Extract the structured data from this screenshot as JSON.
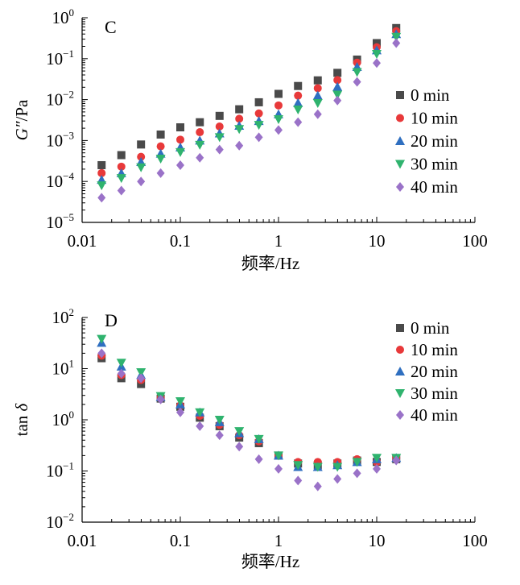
{
  "colors": {
    "0 min": "#4a4a4a",
    "10 min": "#e8393a",
    "20 min": "#2f6fc0",
    "30 min": "#2fb36e",
    "40 min": "#9a72c8"
  },
  "chart_data": [
    {
      "type": "scatter",
      "panel_label": "C",
      "xlabel": "频率/Hz",
      "ylabel_italic": "G″",
      "ylabel_rest": "/Pa",
      "xscale": "log",
      "yscale": "log",
      "xlim": [
        0.01,
        100
      ],
      "ylim": [
        1e-05,
        1
      ],
      "x_ticks": [
        "0.01",
        "0.1",
        "1",
        "10",
        "100"
      ],
      "y_ticks": [
        {
          "base": "10",
          "exp": "0"
        },
        {
          "base": "10",
          "exp": "−1"
        },
        {
          "base": "10",
          "exp": "−2"
        },
        {
          "base": "10",
          "exp": "−3"
        },
        {
          "base": "10",
          "exp": "−4"
        },
        {
          "base": "10",
          "exp": "−5"
        }
      ],
      "legend_position": "right",
      "x": [
        0.0158,
        0.0251,
        0.0398,
        0.0631,
        0.1,
        0.158,
        0.251,
        0.398,
        0.631,
        1.0,
        1.58,
        2.51,
        3.98,
        6.31,
        10.0,
        15.8
      ],
      "series": [
        {
          "name": "0 min",
          "marker": "square",
          "values": [
            0.00025,
            0.00044,
            0.0008,
            0.0014,
            0.0021,
            0.0028,
            0.004,
            0.0058,
            0.0086,
            0.0138,
            0.0215,
            0.0295,
            0.045,
            0.095,
            0.24,
            0.56
          ]
        },
        {
          "name": "10 min",
          "marker": "circle",
          "values": [
            0.00016,
            0.00023,
            0.0004,
            0.00072,
            0.00105,
            0.0016,
            0.0022,
            0.0034,
            0.0046,
            0.0072,
            0.0125,
            0.019,
            0.03,
            0.08,
            0.19,
            0.47
          ]
        },
        {
          "name": "20 min",
          "marker": "triangle-up",
          "values": [
            0.00011,
            0.00016,
            0.0003,
            0.00048,
            0.00068,
            0.001,
            0.0015,
            0.0023,
            0.003,
            0.0044,
            0.0083,
            0.0125,
            0.0205,
            0.063,
            0.16,
            0.4
          ]
        },
        {
          "name": "30 min",
          "marker": "triangle-down",
          "values": [
            8e-05,
            0.00012,
            0.00022,
            0.00036,
            0.00052,
            0.00078,
            0.0012,
            0.0019,
            0.0024,
            0.0033,
            0.0057,
            0.0082,
            0.0132,
            0.047,
            0.13,
            0.34
          ]
        },
        {
          "name": "40 min",
          "marker": "diamond",
          "values": [
            4e-05,
            6e-05,
            0.0001,
            0.00016,
            0.00025,
            0.00038,
            0.0006,
            0.00075,
            0.0012,
            0.0018,
            0.0028,
            0.0044,
            0.0095,
            0.027,
            0.078,
            0.24
          ]
        }
      ]
    },
    {
      "type": "scatter",
      "panel_label": "D",
      "xlabel": "频率/Hz",
      "ylabel_italic": "δ",
      "ylabel_rest": "tan ",
      "xscale": "log",
      "yscale": "log",
      "xlim": [
        0.01,
        100
      ],
      "ylim": [
        0.01,
        100
      ],
      "x_ticks": [
        "0.01",
        "0.1",
        "1",
        "10",
        "100"
      ],
      "y_ticks": [
        {
          "base": "10",
          "exp": "2"
        },
        {
          "base": "10",
          "exp": "1"
        },
        {
          "base": "10",
          "exp": "0"
        },
        {
          "base": "10",
          "exp": "−1"
        },
        {
          "base": "10",
          "exp": "−2"
        }
      ],
      "legend_position": "right",
      "x": [
        0.0158,
        0.0251,
        0.0398,
        0.0631,
        0.1,
        0.158,
        0.251,
        0.398,
        0.631,
        1.0,
        1.58,
        2.51,
        3.98,
        6.31,
        10.0,
        15.8
      ],
      "series": [
        {
          "name": "0 min",
          "marker": "square",
          "values": [
            16,
            6.5,
            5,
            2.6,
            1.8,
            1.1,
            0.75,
            0.45,
            0.35,
            0.2,
            0.14,
            0.13,
            0.14,
            0.16,
            0.15,
            0.17
          ]
        },
        {
          "name": "10 min",
          "marker": "circle",
          "values": [
            18,
            7.5,
            6,
            2.7,
            1.9,
            1.2,
            0.8,
            0.5,
            0.38,
            0.2,
            0.15,
            0.15,
            0.15,
            0.17,
            0.15,
            0.18
          ]
        },
        {
          "name": "20 min",
          "marker": "triangle-up",
          "values": [
            32,
            11,
            7.5,
            2.8,
            2.0,
            1.4,
            0.9,
            0.55,
            0.42,
            0.2,
            0.12,
            0.12,
            0.13,
            0.15,
            0.17,
            0.18
          ]
        },
        {
          "name": "30 min",
          "marker": "triangle-down",
          "values": [
            38,
            13,
            8.5,
            2.9,
            2.3,
            1.4,
            1.0,
            0.6,
            0.42,
            0.2,
            0.13,
            0.12,
            0.12,
            0.15,
            0.18,
            0.18
          ]
        },
        {
          "name": "40 min",
          "marker": "diamond",
          "values": [
            20,
            8,
            6.5,
            2.5,
            1.4,
            0.75,
            0.5,
            0.3,
            0.17,
            0.11,
            0.065,
            0.05,
            0.07,
            0.09,
            0.11,
            0.16
          ]
        }
      ]
    }
  ]
}
